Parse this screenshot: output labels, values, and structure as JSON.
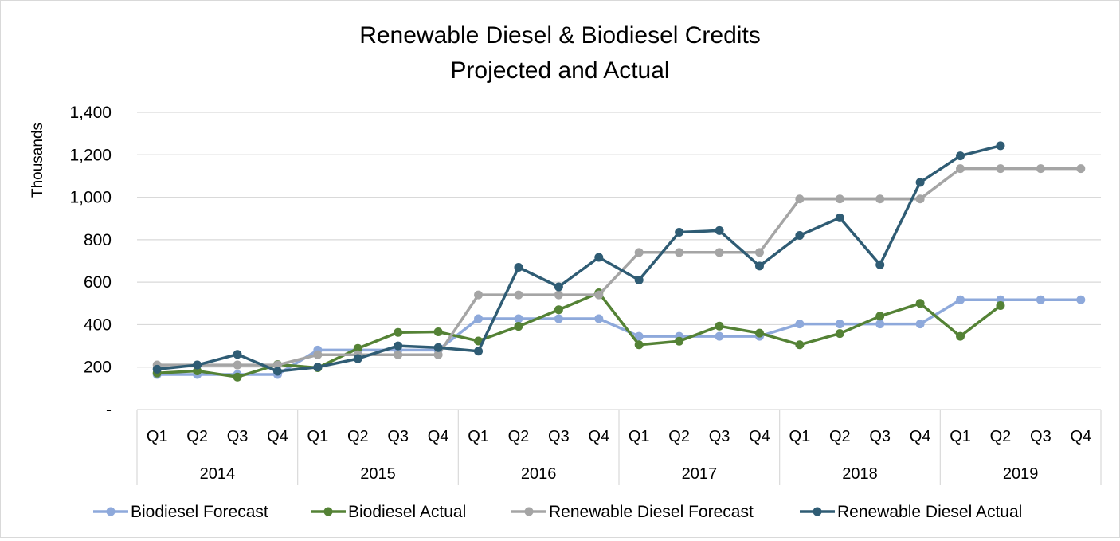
{
  "chart_data": {
    "type": "line",
    "title": "Renewable Diesel & Biodiesel Credits",
    "subtitle": "Projected and Actual",
    "ylabel": "Thousands",
    "xlabel": "",
    "ylim": [
      0,
      1400
    ],
    "yticks": [
      0,
      200,
      400,
      600,
      800,
      1000,
      1200,
      1400
    ],
    "ytick_labels": [
      "-",
      "200",
      "400",
      "600",
      "800",
      "1,000",
      "1,200",
      "1,400"
    ],
    "grid": true,
    "legend_position": "bottom",
    "years": [
      "2014",
      "2015",
      "2016",
      "2017",
      "2018",
      "2019"
    ],
    "quarters": [
      "Q1",
      "Q2",
      "Q3",
      "Q4"
    ],
    "series": [
      {
        "name": "Biodiesel Forecast",
        "color": "#8EA9DB",
        "values": [
          165,
          165,
          165,
          165,
          280,
          280,
          280,
          280,
          428,
          428,
          428,
          428,
          345,
          345,
          345,
          345,
          403,
          403,
          403,
          403,
          517,
          517,
          517,
          517
        ]
      },
      {
        "name": "Biodiesel Actual",
        "color": "#548235",
        "values": [
          172,
          182,
          153,
          212,
          197,
          288,
          363,
          366,
          323,
          392,
          470,
          550,
          305,
          322,
          393,
          360,
          305,
          358,
          440,
          500,
          345,
          490,
          null,
          null
        ]
      },
      {
        "name": "Renewable Diesel Forecast",
        "color": "#A5A5A5",
        "values": [
          210,
          210,
          210,
          210,
          258,
          258,
          258,
          258,
          540,
          540,
          540,
          540,
          740,
          740,
          740,
          740,
          992,
          992,
          992,
          992,
          1135,
          1135,
          1135,
          1135
        ]
      },
      {
        "name": "Renewable Diesel Actual",
        "color": "#2F5C74",
        "values": [
          190,
          210,
          260,
          180,
          200,
          240,
          300,
          292,
          275,
          670,
          578,
          717,
          610,
          835,
          843,
          676,
          820,
          903,
          682,
          1070,
          1195,
          1243,
          null,
          null
        ]
      }
    ]
  }
}
